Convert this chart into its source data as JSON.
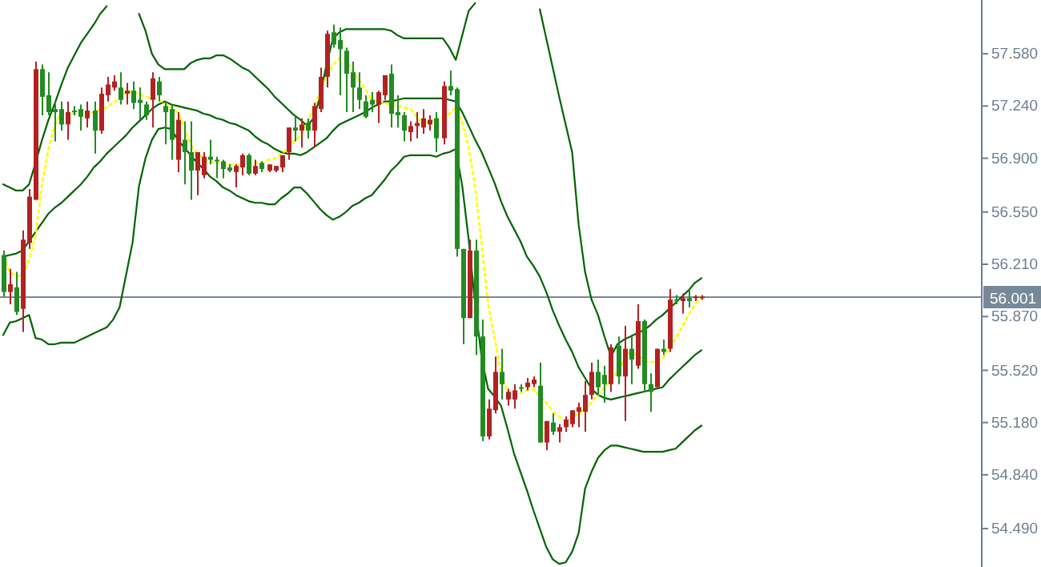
{
  "chart_data": {
    "type": "candlestick",
    "categories": [
      null,
      null,
      null,
      null,
      null,
      null,
      null,
      null,
      null,
      null,
      null,
      null,
      null,
      null,
      null,
      null,
      null,
      null,
      null,
      null,
      null,
      null,
      null,
      null,
      null,
      null,
      null,
      null,
      null,
      null,
      null,
      null,
      null,
      null,
      null,
      null,
      null,
      null,
      null,
      null,
      null,
      null,
      null,
      null,
      null,
      null,
      null,
      null,
      null,
      null,
      null,
      null,
      null,
      null,
      null,
      null,
      null,
      null,
      null,
      null,
      null,
      null,
      null,
      null,
      null,
      null,
      null,
      null,
      null,
      null,
      null,
      null,
      null,
      null,
      null,
      null,
      null,
      null,
      null,
      null,
      null,
      null,
      null,
      null,
      null,
      null,
      null,
      null,
      null,
      null,
      null,
      null,
      null,
      null,
      null,
      null,
      null,
      null,
      null,
      null,
      null,
      null,
      null,
      null,
      null,
      null,
      null,
      null,
      null
    ],
    "ohlc": [
      [
        56.27,
        56.3,
        56.0,
        56.03
      ],
      [
        56.03,
        56.18,
        55.95,
        56.08
      ],
      [
        56.06,
        56.16,
        55.88,
        55.9
      ],
      [
        55.92,
        56.43,
        55.77,
        56.37
      ],
      [
        56.35,
        56.7,
        56.31,
        56.65
      ],
      [
        56.63,
        57.53,
        56.63,
        57.48
      ],
      [
        57.48,
        57.51,
        57.18,
        57.3
      ],
      [
        57.31,
        57.46,
        57.18,
        57.2
      ],
      [
        57.22,
        57.27,
        57.01,
        57.2
      ],
      [
        57.22,
        57.27,
        57.08,
        57.12
      ],
      [
        57.12,
        57.27,
        57.02,
        57.2
      ],
      [
        57.21,
        57.24,
        57.18,
        57.2
      ],
      [
        57.22,
        57.25,
        57.08,
        57.17
      ],
      [
        57.16,
        57.27,
        57.1,
        57.21
      ],
      [
        57.21,
        57.27,
        56.93,
        57.08
      ],
      [
        57.08,
        57.36,
        57.06,
        57.32
      ],
      [
        57.31,
        57.43,
        57.27,
        57.38
      ],
      [
        57.36,
        57.44,
        57.34,
        57.4
      ],
      [
        57.36,
        57.46,
        57.25,
        57.28
      ],
      [
        57.32,
        57.39,
        57.25,
        57.34
      ],
      [
        57.34,
        57.4,
        57.22,
        57.26
      ],
      [
        57.28,
        57.36,
        57.15,
        57.26
      ],
      [
        57.25,
        57.27,
        57.15,
        57.18
      ],
      [
        57.28,
        57.46,
        57.1,
        57.42
      ],
      [
        57.4,
        57.43,
        57.27,
        57.31
      ],
      [
        57.24,
        57.27,
        56.99,
        57.2
      ],
      [
        57.22,
        57.25,
        56.89,
        57.02
      ],
      [
        56.89,
        57.2,
        56.81,
        57.15
      ],
      [
        57.02,
        57.14,
        56.73,
        56.94
      ],
      [
        56.94,
        57.14,
        56.63,
        56.82
      ],
      [
        56.82,
        56.94,
        56.66,
        56.94
      ],
      [
        56.79,
        56.94,
        56.77,
        56.91
      ],
      [
        56.91,
        57.02,
        56.86,
        56.89
      ],
      [
        56.89,
        56.91,
        56.77,
        56.88
      ],
      [
        56.88,
        56.89,
        56.77,
        56.83
      ],
      [
        56.84,
        56.86,
        56.81,
        56.82
      ],
      [
        56.81,
        56.86,
        56.71,
        56.85
      ],
      [
        56.84,
        56.93,
        56.79,
        56.92
      ],
      [
        56.92,
        56.93,
        56.79,
        56.8
      ],
      [
        56.8,
        56.89,
        56.79,
        56.85
      ],
      [
        56.87,
        56.88,
        56.81,
        56.83
      ],
      [
        56.82,
        56.86,
        56.81,
        56.86
      ],
      [
        56.82,
        56.85,
        56.81,
        56.85
      ],
      [
        56.84,
        56.92,
        56.81,
        56.92
      ],
      [
        56.94,
        57.1,
        56.89,
        57.1
      ],
      [
        57.1,
        57.17,
        57.01,
        57.08
      ],
      [
        57.08,
        57.16,
        56.97,
        57.12
      ],
      [
        57.13,
        57.16,
        57.03,
        57.08
      ],
      [
        57.08,
        57.26,
        56.97,
        57.24
      ],
      [
        57.22,
        57.49,
        57.2,
        57.43
      ],
      [
        57.43,
        57.73,
        57.36,
        57.71
      ],
      [
        57.72,
        57.77,
        57.62,
        57.64
      ],
      [
        57.67,
        57.75,
        57.31,
        57.61
      ],
      [
        57.6,
        57.62,
        57.2,
        57.45
      ],
      [
        57.46,
        57.53,
        57.2,
        57.36
      ],
      [
        57.36,
        57.46,
        57.22,
        57.28
      ],
      [
        57.27,
        57.31,
        57.16,
        57.17
      ],
      [
        57.28,
        57.33,
        57.2,
        57.25
      ],
      [
        57.25,
        57.34,
        57.13,
        57.33
      ],
      [
        57.31,
        57.44,
        57.28,
        57.44
      ],
      [
        57.45,
        57.51,
        57.1,
        57.19
      ],
      [
        57.2,
        57.31,
        57.1,
        57.18
      ],
      [
        57.18,
        57.2,
        57.01,
        57.08
      ],
      [
        57.07,
        57.14,
        57.01,
        57.11
      ],
      [
        57.11,
        57.2,
        57.03,
        57.13
      ],
      [
        57.1,
        57.22,
        57.06,
        57.16
      ],
      [
        57.12,
        57.18,
        57.08,
        57.15
      ],
      [
        57.16,
        57.2,
        56.94,
        57.03
      ],
      [
        57.03,
        57.4,
        56.99,
        57.37
      ],
      [
        57.37,
        57.47,
        57.31,
        57.34
      ],
      [
        57.35,
        57.36,
        56.26,
        56.31
      ],
      [
        56.31,
        56.31,
        55.69,
        55.86
      ],
      [
        55.86,
        56.37,
        55.86,
        56.3
      ],
      [
        56.3,
        56.37,
        55.62,
        55.74
      ],
      [
        55.74,
        55.85,
        55.06,
        55.09
      ],
      [
        55.09,
        55.33,
        55.07,
        55.27
      ],
      [
        55.26,
        55.61,
        55.24,
        55.51
      ],
      [
        55.51,
        55.66,
        55.33,
        55.43
      ],
      [
        55.33,
        55.4,
        55.29,
        55.38
      ],
      [
        55.33,
        55.43,
        55.27,
        55.39
      ],
      [
        55.41,
        55.43,
        55.38,
        55.4
      ],
      [
        55.41,
        55.47,
        55.39,
        55.44
      ],
      [
        55.43,
        55.48,
        55.41,
        55.46
      ],
      [
        55.42,
        55.57,
        55.05,
        55.05
      ],
      [
        55.05,
        55.19,
        55.0,
        55.19
      ],
      [
        55.18,
        55.24,
        55.1,
        55.12
      ],
      [
        55.12,
        55.17,
        55.05,
        55.15
      ],
      [
        55.15,
        55.22,
        55.12,
        55.2
      ],
      [
        55.17,
        55.26,
        55.15,
        55.26
      ],
      [
        55.25,
        55.31,
        55.15,
        55.28
      ],
      [
        55.25,
        55.45,
        55.12,
        55.36
      ],
      [
        55.36,
        55.57,
        55.33,
        55.51
      ],
      [
        55.51,
        55.59,
        55.36,
        55.41
      ],
      [
        55.49,
        55.55,
        55.31,
        55.43
      ],
      [
        55.43,
        55.69,
        55.38,
        55.67
      ],
      [
        55.68,
        55.74,
        55.43,
        55.48
      ],
      [
        55.48,
        55.81,
        55.19,
        55.66
      ],
      [
        55.66,
        55.74,
        55.43,
        55.59
      ],
      [
        55.55,
        55.95,
        55.53,
        55.84
      ],
      [
        55.84,
        55.85,
        55.38,
        55.43
      ],
      [
        55.43,
        55.5,
        55.25,
        55.38
      ],
      [
        55.41,
        55.66,
        55.41,
        55.66
      ],
      [
        55.66,
        55.72,
        55.62,
        55.64
      ],
      [
        55.66,
        56.05,
        55.64,
        55.98
      ],
      [
        55.98,
        56.01,
        55.95,
        55.97
      ],
      [
        55.97,
        56.02,
        55.89,
        55.99
      ],
      [
        55.99,
        56.05,
        55.93,
        55.97
      ],
      [
        55.99,
        56.01,
        55.97,
        56.0
      ],
      [
        55.99,
        56.01,
        55.98,
        56.0
      ]
    ],
    "colors": [
      "#228b22",
      "#b22222",
      "#228b22",
      "#b22222",
      "#b22222",
      "#b22222",
      "#228b22",
      "#228b22",
      "#228b22",
      "#228b22",
      "#b22222",
      "#228b22",
      "#228b22",
      "#b22222",
      "#228b22",
      "#b22222",
      "#b22222",
      "#b22222",
      "#228b22",
      "#b22222",
      "#228b22",
      "#228b22",
      "#228b22",
      "#b22222",
      "#228b22",
      "#228b22",
      "#228b22",
      "#b22222",
      "#228b22",
      "#228b22",
      "#b22222",
      "#b22222",
      "#228b22",
      "#228b22",
      "#228b22",
      "#228b22",
      "#b22222",
      "#b22222",
      "#228b22",
      "#b22222",
      "#228b22",
      "#b22222",
      "#b22222",
      "#b22222",
      "#b22222",
      "#228b22",
      "#b22222",
      "#228b22",
      "#b22222",
      "#b22222",
      "#b22222",
      "#228b22",
      "#228b22",
      "#228b22",
      "#228b22",
      "#228b22",
      "#228b22",
      "#228b22",
      "#b22222",
      "#b22222",
      "#228b22",
      "#228b22",
      "#228b22",
      "#b22222",
      "#b22222",
      "#b22222",
      "#b22222",
      "#228b22",
      "#b22222",
      "#228b22",
      "#228b22",
      "#228b22",
      "#b22222",
      "#228b22",
      "#228b22",
      "#b22222",
      "#b22222",
      "#228b22",
      "#b22222",
      "#b22222",
      "#228b22",
      "#b22222",
      "#b22222",
      "#228b22",
      "#b22222",
      "#228b22",
      "#b22222",
      "#b22222",
      "#b22222",
      "#b22222",
      "#b22222",
      "#b22222",
      "#228b22",
      "#228b22",
      "#b22222",
      "#228b22",
      "#b22222",
      "#228b22",
      "#b22222",
      "#228b22",
      "#228b22",
      "#b22222",
      "#228b22",
      "#b22222",
      "#228b22",
      "#b22222",
      "#228b22",
      "#b22222",
      "#b22222"
    ],
    "series": [
      {
        "type": "line",
        "color": "#006400",
        "values": [
          56.73,
          56.71,
          56.69,
          56.69,
          56.73,
          56.87,
          57.02,
          57.15,
          57.26,
          57.38,
          57.49,
          57.57,
          57.65,
          57.71,
          57.77,
          57.84,
          57.89,
          null,
          null,
          null,
          null,
          57.84,
          57.73,
          57.58,
          57.51,
          57.48,
          57.48,
          57.48,
          57.48,
          57.52,
          57.54,
          57.55,
          57.55,
          57.57,
          57.57,
          57.55,
          57.52,
          57.49,
          57.47,
          57.43,
          57.39,
          57.35,
          57.3,
          57.26,
          57.22,
          57.18,
          57.15,
          57.11,
          57.16,
          57.3,
          57.51,
          57.68,
          57.72,
          57.74,
          57.74,
          57.74,
          57.74,
          57.74,
          57.74,
          57.74,
          57.73,
          57.7,
          57.68,
          57.68,
          57.68,
          57.68,
          57.68,
          57.68,
          57.68,
          57.62,
          57.54,
          57.7,
          57.86,
          57.91,
          null,
          null,
          null,
          null,
          null,
          null,
          null,
          null,
          null,
          57.87,
          57.68,
          57.49,
          57.3,
          57.12,
          56.94,
          56.47,
          56.16,
          55.98,
          55.88,
          55.74,
          55.61,
          55.69,
          55.72,
          55.74,
          55.76,
          55.78,
          55.81,
          55.85,
          55.88,
          55.92,
          55.96,
          56.0,
          56.04,
          56.09,
          56.12
        ]
      },
      {
        "type": "line",
        "color": "#006400",
        "values": [
          56.26,
          56.27,
          56.28,
          56.3,
          56.36,
          56.42,
          56.48,
          56.54,
          56.58,
          56.61,
          56.65,
          56.69,
          56.73,
          56.78,
          56.84,
          56.88,
          56.93,
          56.97,
          57.01,
          57.05,
          57.1,
          57.14,
          57.18,
          57.22,
          57.25,
          57.27,
          57.25,
          57.24,
          57.23,
          57.22,
          57.21,
          57.19,
          57.18,
          57.16,
          57.15,
          57.13,
          57.12,
          57.1,
          57.08,
          57.04,
          57.01,
          56.99,
          56.96,
          56.94,
          56.93,
          56.93,
          56.92,
          56.94,
          56.97,
          57.0,
          57.03,
          57.08,
          57.12,
          57.14,
          57.16,
          57.18,
          57.2,
          57.23,
          57.25,
          57.27,
          57.27,
          57.28,
          57.29,
          57.29,
          57.29,
          57.29,
          57.29,
          57.29,
          57.29,
          57.28,
          57.27,
          57.2,
          57.11,
          57.02,
          56.94,
          56.84,
          56.74,
          56.62,
          56.52,
          56.44,
          56.36,
          56.26,
          56.2,
          56.13,
          56.03,
          55.91,
          55.81,
          55.72,
          55.64,
          55.54,
          55.47,
          55.4,
          55.36,
          55.34,
          55.33,
          55.34,
          55.35,
          55.36,
          55.37,
          55.38,
          55.39,
          55.4,
          55.41,
          55.46,
          55.5,
          55.54,
          55.58,
          55.62,
          55.65
        ]
      },
      {
        "type": "line",
        "color": "#006400",
        "values": [
          55.75,
          55.83,
          55.84,
          55.86,
          55.88,
          55.73,
          55.72,
          55.69,
          55.69,
          55.7,
          55.7,
          55.7,
          55.72,
          55.74,
          55.76,
          55.78,
          55.8,
          55.85,
          55.93,
          56.14,
          56.35,
          56.72,
          56.9,
          57.02,
          57.09,
          57.1,
          57.09,
          57.02,
          56.97,
          56.92,
          56.87,
          56.83,
          56.78,
          56.75,
          56.71,
          56.69,
          56.66,
          56.64,
          56.62,
          56.61,
          56.61,
          56.6,
          56.6,
          56.64,
          56.67,
          56.71,
          56.71,
          56.67,
          56.62,
          56.57,
          56.53,
          56.5,
          56.52,
          56.55,
          56.59,
          56.61,
          56.64,
          56.66,
          56.71,
          56.76,
          56.82,
          56.86,
          56.91,
          56.92,
          56.92,
          56.92,
          56.92,
          56.91,
          56.93,
          56.94,
          56.96,
          56.72,
          56.37,
          55.95,
          55.6,
          55.4,
          55.35,
          55.29,
          55.14,
          54.98,
          54.86,
          54.74,
          54.61,
          54.49,
          54.37,
          54.29,
          54.26,
          54.27,
          54.34,
          54.46,
          54.75,
          54.86,
          54.95,
          55.0,
          55.03,
          55.03,
          55.02,
          55.01,
          55.0,
          54.99,
          54.99,
          54.99,
          54.99,
          55.0,
          55.01,
          55.05,
          55.09,
          55.13,
          55.16
        ]
      },
      {
        "type": "line",
        "color": "#ffff00",
        "line_style": "dotted",
        "values": [
          56.26,
          56.16,
          56.13,
          56.14,
          56.24,
          56.4,
          56.73,
          56.96,
          57.12,
          57.2,
          57.2,
          57.19,
          57.18,
          57.19,
          57.2,
          57.22,
          57.23,
          57.26,
          57.29,
          57.34,
          57.33,
          57.32,
          57.3,
          57.29,
          57.28,
          57.26,
          57.23,
          57.2,
          57.1,
          56.99,
          56.93,
          56.9,
          56.88,
          56.87,
          56.87,
          56.86,
          56.86,
          56.86,
          56.86,
          56.87,
          56.87,
          56.89,
          56.9,
          56.93,
          56.96,
          57.01,
          57.05,
          57.13,
          57.23,
          57.33,
          57.43,
          57.51,
          57.55,
          57.54,
          57.47,
          57.41,
          57.35,
          57.28,
          57.27,
          57.26,
          57.25,
          57.24,
          57.23,
          57.22,
          57.17,
          57.13,
          57.14,
          57.15,
          57.17,
          57.19,
          57.23,
          57.13,
          56.97,
          56.71,
          56.34,
          55.95,
          55.73,
          55.5,
          55.38,
          55.36,
          55.37,
          55.39,
          55.4,
          55.35,
          55.31,
          55.25,
          55.22,
          55.19,
          55.21,
          55.24,
          55.27,
          55.31,
          55.36,
          55.41,
          55.46,
          55.51,
          55.58,
          55.64,
          55.62,
          55.59,
          55.57,
          55.58,
          55.6,
          55.66,
          55.73,
          55.8,
          55.88,
          55.95,
          55.99
        ]
      }
    ],
    "ylim": [
      54.24,
      57.93
    ],
    "yticks": [
      {
        "value": 57.58,
        "label": "57.580"
      },
      {
        "value": 57.24,
        "label": "57.240"
      },
      {
        "value": 56.9,
        "label": "56.900"
      },
      {
        "value": 56.55,
        "label": "56.550"
      },
      {
        "value": 56.21,
        "label": "56.210"
      },
      {
        "value": 55.87,
        "label": "55.870"
      },
      {
        "value": 55.52,
        "label": "55.520"
      },
      {
        "value": 55.18,
        "label": "55.180"
      },
      {
        "value": 54.84,
        "label": "54.840"
      },
      {
        "value": 54.49,
        "label": "54.490"
      }
    ],
    "ref_lines": [
      {
        "axis": "y",
        "value": 56.001,
        "label": "56.001",
        "color": "#778899"
      }
    ],
    "tick_labels": "y"
  }
}
